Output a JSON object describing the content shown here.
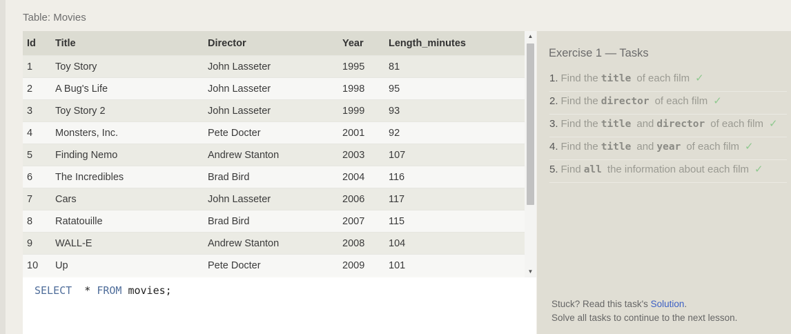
{
  "table_caption": "Table: Movies",
  "columns": [
    "Id",
    "Title",
    "Director",
    "Year",
    "Length_minutes"
  ],
  "rows": [
    [
      "1",
      "Toy Story",
      "John Lasseter",
      "1995",
      "81"
    ],
    [
      "2",
      "A Bug's Life",
      "John Lasseter",
      "1998",
      "95"
    ],
    [
      "3",
      "Toy Story 2",
      "John Lasseter",
      "1999",
      "93"
    ],
    [
      "4",
      "Monsters, Inc.",
      "Pete Docter",
      "2001",
      "92"
    ],
    [
      "5",
      "Finding Nemo",
      "Andrew Stanton",
      "2003",
      "107"
    ],
    [
      "6",
      "The Incredibles",
      "Brad Bird",
      "2004",
      "116"
    ],
    [
      "7",
      "Cars",
      "John Lasseter",
      "2006",
      "117"
    ],
    [
      "8",
      "Ratatouille",
      "Brad Bird",
      "2007",
      "115"
    ],
    [
      "9",
      "WALL-E",
      "Andrew Stanton",
      "2008",
      "104"
    ],
    [
      "10",
      "Up",
      "Pete Docter",
      "2009",
      "101"
    ]
  ],
  "scrollbar": {
    "up_glyph": "▲",
    "down_glyph": "▼"
  },
  "editor": {
    "tokens": [
      {
        "text": "SELECT",
        "kind": "kw"
      },
      {
        "text": "  * ",
        "kind": "plain"
      },
      {
        "text": "FROM",
        "kind": "kw"
      },
      {
        "text": " movies;",
        "kind": "plain"
      }
    ]
  },
  "exercise": {
    "title": "Exercise 1 — Tasks",
    "tasks": [
      {
        "num": "1.",
        "parts": [
          {
            "t": "text",
            "v": "Find the"
          },
          {
            "t": "code",
            "v": "title"
          },
          {
            "t": "text",
            "v": "of each film"
          }
        ],
        "check": "✓"
      },
      {
        "num": "2.",
        "parts": [
          {
            "t": "text",
            "v": "Find the"
          },
          {
            "t": "code",
            "v": "director"
          },
          {
            "t": "text",
            "v": "of each film"
          }
        ],
        "check": "✓"
      },
      {
        "num": "3.",
        "parts": [
          {
            "t": "text",
            "v": "Find the"
          },
          {
            "t": "code",
            "v": "title"
          },
          {
            "t": "text",
            "v": "and"
          },
          {
            "t": "code",
            "v": "director"
          },
          {
            "t": "text",
            "v": "of each film"
          }
        ],
        "check": "✓"
      },
      {
        "num": "4.",
        "parts": [
          {
            "t": "text",
            "v": "Find the"
          },
          {
            "t": "code",
            "v": "title"
          },
          {
            "t": "text",
            "v": "and"
          },
          {
            "t": "code",
            "v": "year"
          },
          {
            "t": "text",
            "v": "of each film"
          }
        ],
        "check": "✓"
      },
      {
        "num": "5.",
        "parts": [
          {
            "t": "text",
            "v": "Find"
          },
          {
            "t": "code",
            "v": "all"
          },
          {
            "t": "text",
            "v": "the information about each film"
          }
        ],
        "check": "✓"
      }
    ],
    "help_prefix": "Stuck? Read this task's ",
    "help_link": "Solution",
    "help_suffix": ".",
    "help_line2": "Solve all tasks to continue to the next lesson."
  },
  "colors": {
    "accent_link": "#3b5fc4",
    "check": "#8fc98f",
    "sql_keyword": "#4f6d9a"
  }
}
